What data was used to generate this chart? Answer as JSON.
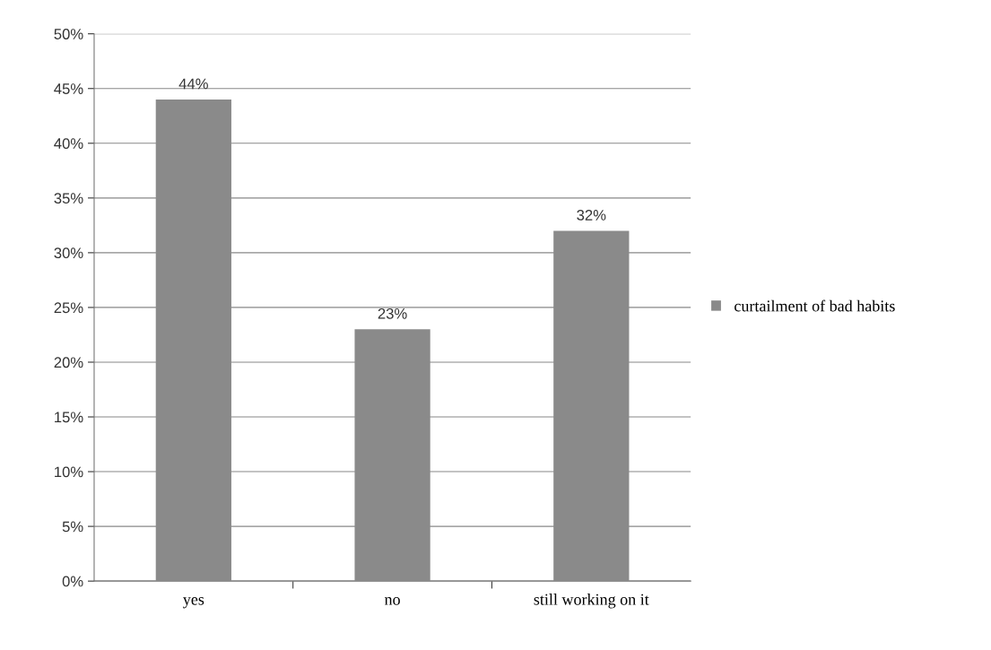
{
  "chart_data": {
    "type": "bar",
    "categories": [
      "yes",
      "no",
      "still working on it"
    ],
    "series": [
      {
        "name": "curtailment of bad habits",
        "color": "#8a8a8a",
        "values": [
          44,
          23,
          32
        ],
        "value_labels": [
          "44%",
          "23%",
          "32%"
        ]
      }
    ],
    "ylim": [
      0,
      50
    ],
    "yticks": [
      {
        "value": 0,
        "label": "0%"
      },
      {
        "value": 5,
        "label": "5%"
      },
      {
        "value": 10,
        "label": "10%"
      },
      {
        "value": 15,
        "label": "15%"
      },
      {
        "value": 20,
        "label": "20%"
      },
      {
        "value": 25,
        "label": "25%"
      },
      {
        "value": 30,
        "label": "30%"
      },
      {
        "value": 35,
        "label": "35%"
      },
      {
        "value": 40,
        "label": "40%"
      },
      {
        "value": 45,
        "label": "45%"
      },
      {
        "value": 50,
        "label": "50%"
      }
    ],
    "grid": "y",
    "legend": "right"
  }
}
